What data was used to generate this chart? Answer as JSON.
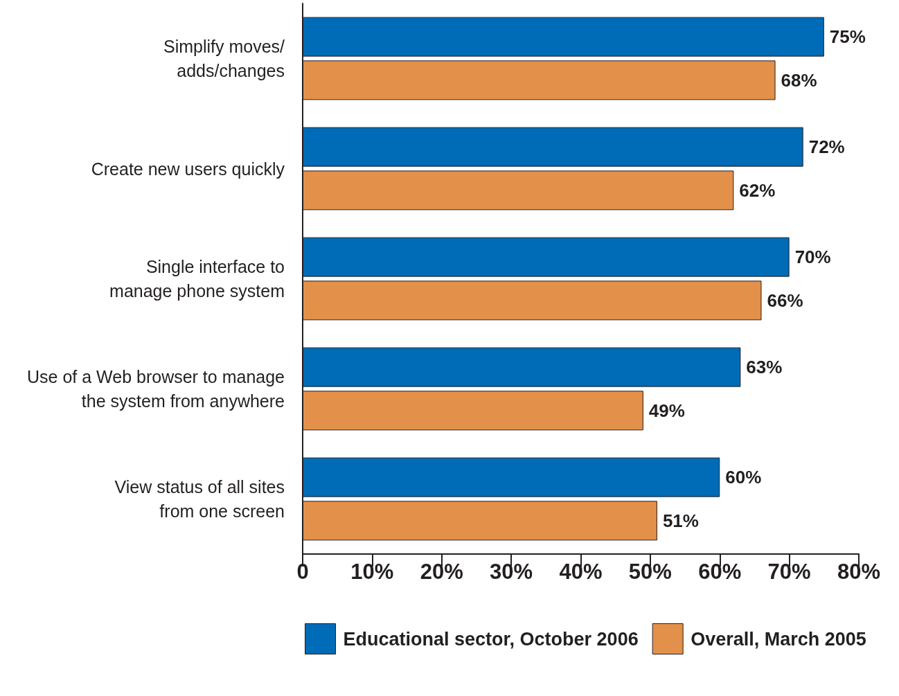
{
  "chart_data": {
    "type": "bar",
    "orientation": "horizontal",
    "categories": [
      "Simplify moves/\nadds/changes",
      "Create new users quickly",
      "Single interface to\nmanage phone system",
      "Use of a Web browser to manage\nthe system from anywhere",
      "View status of all sites\nfrom one screen"
    ],
    "series": [
      {
        "name": "Educational sector, October 2006",
        "color": "#006bb6",
        "values": [
          75,
          72,
          70,
          63,
          60
        ],
        "value_labels": [
          "75%",
          "72%",
          "70%",
          "63%",
          "60%"
        ]
      },
      {
        "name": "Overall, March 2005",
        "color": "#e3904a",
        "values": [
          68,
          62,
          66,
          49,
          51
        ],
        "value_labels": [
          "68%",
          "62%",
          "66%",
          "49%",
          "51%"
        ]
      }
    ],
    "xlim": [
      0,
      80
    ],
    "xticks": [
      0,
      {
        "value": 10,
        "label": "10%"
      },
      {
        "value": 20,
        "label": "20%"
      },
      {
        "value": 30,
        "label": "30%"
      },
      {
        "value": 40,
        "label": "40%"
      },
      {
        "value": 50,
        "label": "50%"
      },
      {
        "value": 60,
        "label": "60%"
      },
      {
        "value": 70,
        "label": "70%"
      },
      {
        "value": 80,
        "label": "80%"
      }
    ],
    "grid": false,
    "legend": "bottom left"
  }
}
